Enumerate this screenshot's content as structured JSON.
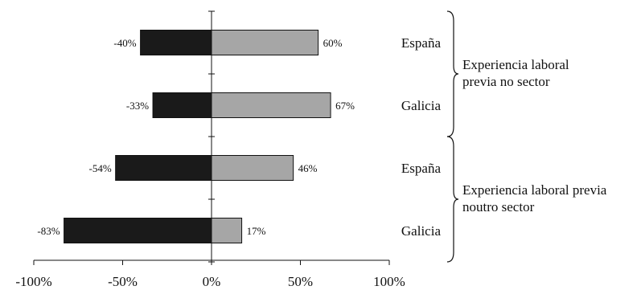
{
  "chart_data": {
    "type": "bar",
    "orientation": "horizontal-diverging",
    "categories": [
      "España",
      "Galicia",
      "España",
      "Galicia"
    ],
    "series": [
      {
        "values": [
          -40,
          -33,
          -54,
          -83
        ],
        "color": "#1a1a1a"
      },
      {
        "values": [
          60,
          67,
          46,
          17
        ],
        "color": "#a6a6a6"
      }
    ],
    "value_labels_neg": [
      "-40%",
      "-33%",
      "-54%",
      "-83%"
    ],
    "value_labels_pos": [
      "60%",
      "67%",
      "46%",
      "17%"
    ],
    "groups": [
      {
        "lines": [
          "Experiencia laboral",
          "previa no sector"
        ],
        "categories": [
          0,
          1
        ]
      },
      {
        "lines": [
          "Experiencia laboral previa",
          "noutro sector"
        ],
        "categories": [
          2,
          3
        ]
      }
    ],
    "xlim": [
      -100,
      100
    ],
    "xticks": [
      -100,
      -50,
      0,
      50,
      100
    ],
    "xtick_labels": [
      "-100%",
      "-50%",
      "0%",
      "50%",
      "100%"
    ],
    "grid": false
  }
}
